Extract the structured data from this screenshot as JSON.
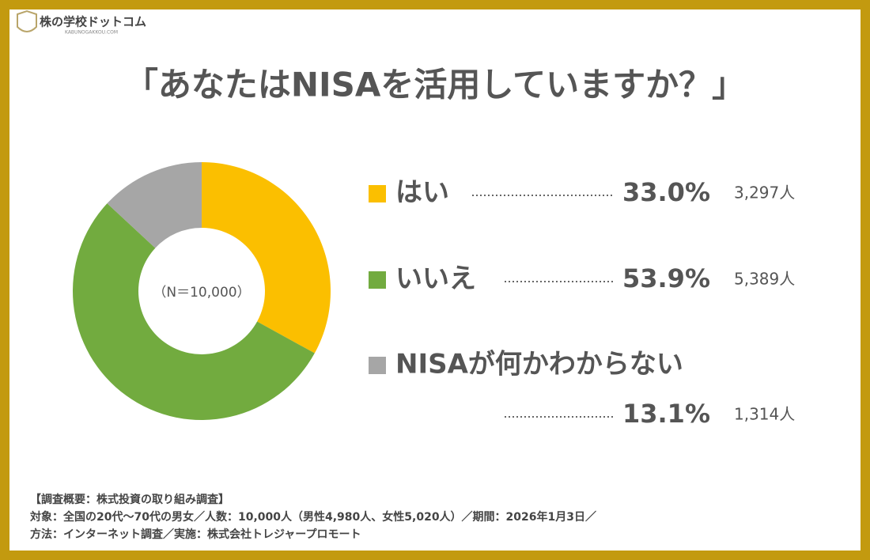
{
  "logo": {
    "name": "株の学校ドットコム",
    "url": "KABUNOGAKKOU.COM"
  },
  "chart_data": {
    "type": "pie",
    "title": "「あなたはNISAを活用していますか？」",
    "annotation": "（N＝10,000）",
    "categories": [
      "はい",
      "いいえ",
      "NISAが何かわからない"
    ],
    "values": [
      33.0,
      53.9,
      13.1
    ],
    "value_labels": [
      "33.0%",
      "53.9%",
      "13.1%"
    ],
    "count_labels": [
      "3,297人",
      "5,389人",
      "1,314人"
    ],
    "colors": [
      "#fbbf00",
      "#72ab3f",
      "#a6a6a6"
    ]
  },
  "footer": [
    "【調査概要：株式投資の取り組み調査】",
    "対象：全国の20代～70代の男女／人数：10,000人（男性4,980人、女性5,020人）／期間：2026年1月3日／",
    "方法：インターネット調査／実施：株式会社トレジャープロモート"
  ]
}
